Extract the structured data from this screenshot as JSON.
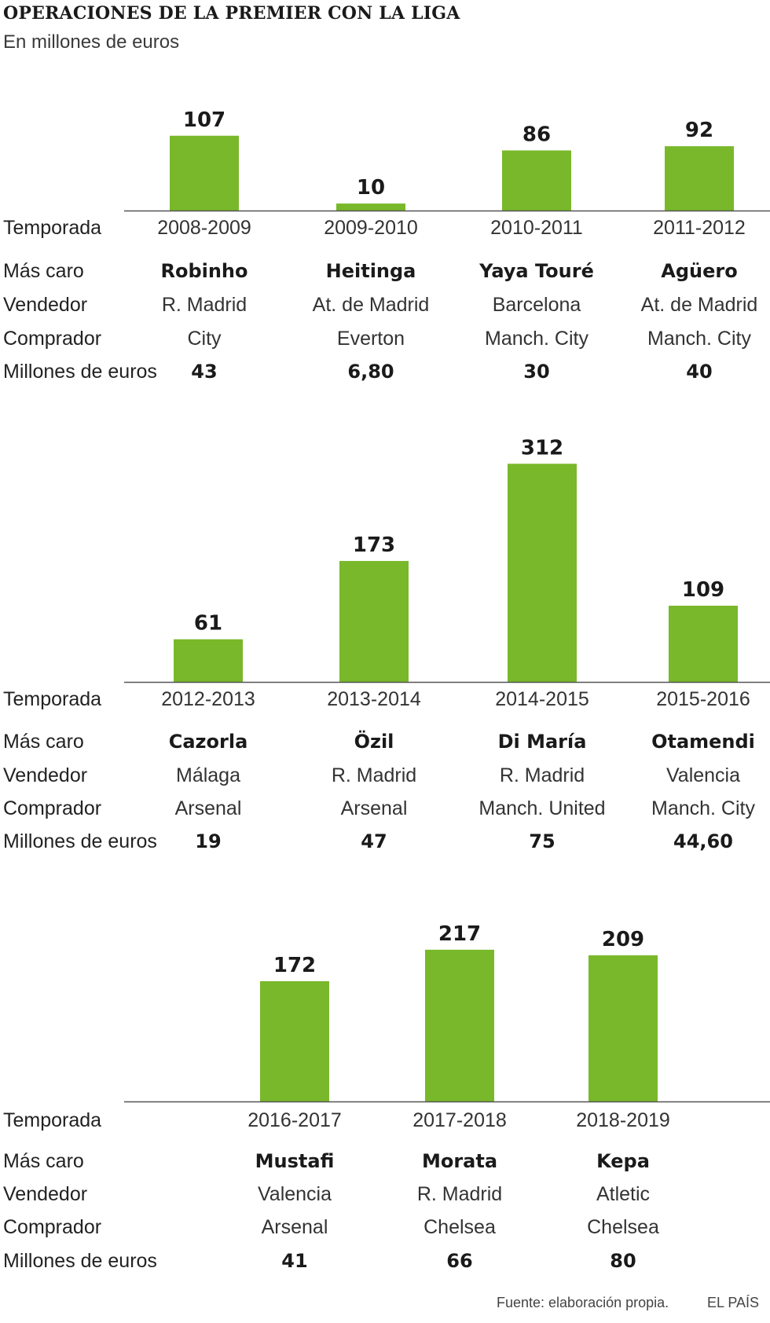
{
  "title": "OPERACIONES DE LA PREMIER CON LA LIGA",
  "subtitle": "En millones de euros",
  "row_labels": {
    "season": "Temporada",
    "most_expensive": "Más caro",
    "seller": "Vendedor",
    "buyer": "Comprador",
    "price": "Millones de euros"
  },
  "chart_data": [
    {
      "type": "bar",
      "categories": [
        "2008-2009",
        "2009-2010",
        "2010-2011",
        "2011-2012"
      ],
      "values": [
        107,
        10,
        86,
        92
      ],
      "value_labels": [
        "107",
        "10",
        "86",
        "92"
      ],
      "players": [
        "Robinho",
        "Heitinga",
        "Yaya Touré",
        "Agüero"
      ],
      "sellers": [
        "R. Madrid",
        "At. de Madrid",
        "Barcelona",
        "At. de Madrid"
      ],
      "buyers": [
        "City",
        "Everton",
        "Manch. City",
        "Manch. City"
      ],
      "prices": [
        "43",
        "6,80",
        "30",
        "40"
      ],
      "ylim": [
        0,
        312
      ]
    },
    {
      "type": "bar",
      "categories": [
        "2012-2013",
        "2013-2014",
        "2014-2015",
        "2015-2016"
      ],
      "values": [
        61,
        173,
        312,
        109
      ],
      "value_labels": [
        "61",
        "173",
        "312",
        "109"
      ],
      "players": [
        "Cazorla",
        "Özil",
        "Di María",
        "Otamendi"
      ],
      "sellers": [
        "Málaga",
        "R. Madrid",
        "R. Madrid",
        "Valencia"
      ],
      "buyers": [
        "Arsenal",
        "Arsenal",
        "Manch. United",
        "Manch. City"
      ],
      "prices": [
        "19",
        "47",
        "75",
        "44,60"
      ],
      "ylim": [
        0,
        312
      ]
    },
    {
      "type": "bar",
      "categories": [
        "2016-2017",
        "2017-2018",
        "2018-2019"
      ],
      "values": [
        172,
        217,
        209
      ],
      "value_labels": [
        "172",
        "217",
        "209"
      ],
      "players": [
        "Mustafi",
        "Morata",
        "Kepa"
      ],
      "sellers": [
        "Valencia",
        "R. Madrid",
        "Atletic"
      ],
      "buyers": [
        "Arsenal",
        "Chelsea",
        "Chelsea"
      ],
      "prices": [
        "41",
        "66",
        "80"
      ],
      "ylim": [
        0,
        312
      ]
    }
  ],
  "colors": {
    "bar": "#78b82a",
    "axis": "#555555"
  },
  "footer": {
    "source": "Fuente: elaboración propia.",
    "brand": "EL PAÍS"
  }
}
